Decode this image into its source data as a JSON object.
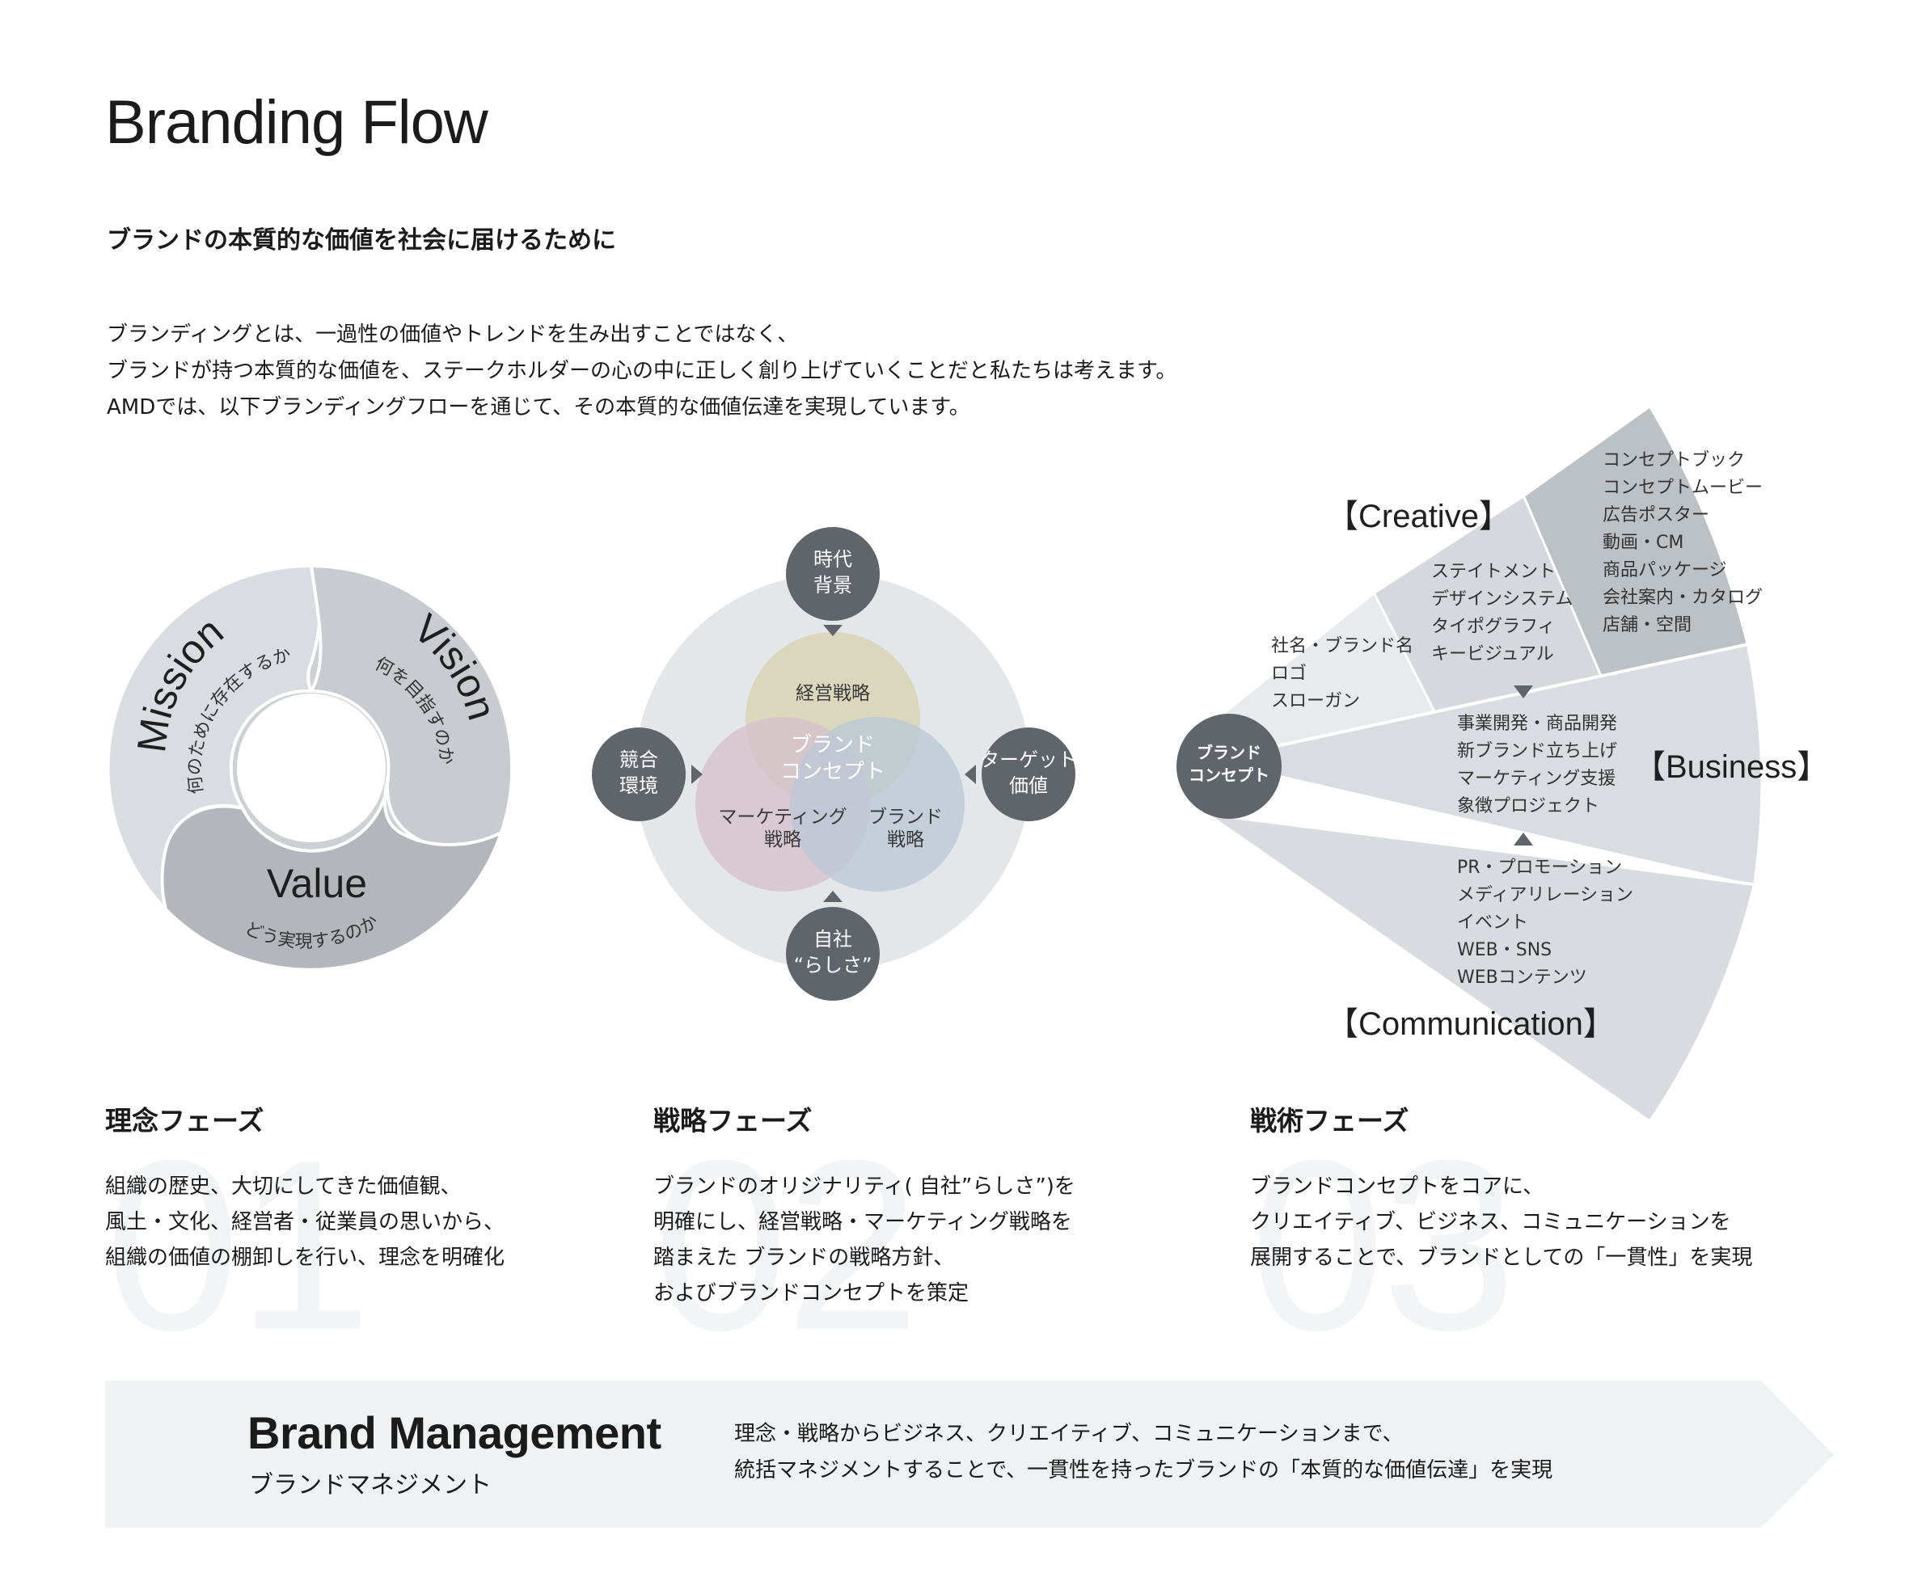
{
  "title": "Branding Flow",
  "subtitle": "ブランドの本質的な価値を社会に届けるために",
  "intro": [
    "ブランディングとは、一過性の価値やトレンドを生み出すことではなく、",
    "ブランドが持つ本質的な価値を、ステークホルダーの心の中に正しく創り上げていくことだと私たちは考えます。",
    "AMDでは、以下ブランディングフローを通じて、その本質的な価値伝達を実現しています。"
  ],
  "cycle": {
    "mission_label": "Mission",
    "mission_sub": "何のために存在するか",
    "vision_label": "Vision",
    "vision_sub": "何を目指すのか",
    "value_label": "Value",
    "value_sub": "どう実現するのか"
  },
  "strategy": {
    "top": [
      "時代",
      "背景"
    ],
    "left": [
      "競合",
      "環境"
    ],
    "right": [
      "ターゲット",
      "価値"
    ],
    "bottom": [
      "自社",
      "“らしさ”"
    ],
    "circle_mgmt": "経営戦略",
    "circle_marketing": [
      "マーケティング",
      "戦略"
    ],
    "circle_brand": [
      "ブランド",
      "戦略"
    ],
    "center": [
      "ブランド",
      "コンセプト"
    ]
  },
  "tactics": {
    "hub": [
      "ブランド",
      "コンセプト"
    ],
    "creative_title": "【Creative】",
    "creative_1": [
      "社名・ブランド名",
      "ロゴ",
      "スローガン"
    ],
    "creative_2": [
      "ステイトメント",
      "デザインシステム",
      "タイポグラフィ",
      "キービジュアル"
    ],
    "creative_3": [
      "コンセプトブック",
      "コンセプトムービー",
      "広告ポスター",
      "動画・CM",
      "商品パッケージ",
      "会社案内・カタログ",
      "店舗・空間"
    ],
    "business_title": "【Business】",
    "business": [
      "事業開発・商品開発",
      "新ブランド立ち上げ",
      "マーケティング支援",
      "象徴プロジェクト"
    ],
    "communication_title": "【Communication】",
    "communication": [
      "PR・プロモーション",
      "メディアリレーション",
      "イベント",
      "WEB・SNS",
      "WEBコンテンツ"
    ]
  },
  "phases": [
    {
      "number": "01",
      "title": "理念フェーズ",
      "lines": [
        "組織の歴史、大切にしてきた価値観、",
        "風土・文化、経営者・従業員の思いから、",
        "組織の価値の棚卸しを行い、理念を明確化"
      ]
    },
    {
      "number": "02",
      "title": "戦略フェーズ",
      "lines": [
        "ブランドのオリジナリティ( 自社”らしさ”)を",
        "明確にし、経営戦略・マーケティング戦略を",
        "踏まえた ブランドの戦略方針、",
        "およびブランドコンセプトを策定"
      ]
    },
    {
      "number": "03",
      "title": "戦術フェーズ",
      "lines": [
        "ブランドコンセプトをコアに、",
        "クリエイティブ、ビジネス、コミュニケーションを",
        "展開することで、ブランドとしての「一貫性」を実現"
      ]
    }
  ],
  "brand_management": {
    "title": "Brand Management",
    "subtitle": "ブランドマネジメント",
    "lines": [
      "理念・戦略からビジネス、クリエイティブ、コミュニケーションまで、",
      "統括マネジメントすることで、一貫性を持ったブランドの「本質的な価値伝達」を実現"
    ]
  },
  "colors": {
    "dark_circle": "#5f656b",
    "pale_gray": "#e4e7ea",
    "mgmt_circle": "#d8d6b9",
    "marketing_circle": "#d6c2cc",
    "brand_circle": "#b9c7d6",
    "arrow_band": "#f0f1f2"
  }
}
